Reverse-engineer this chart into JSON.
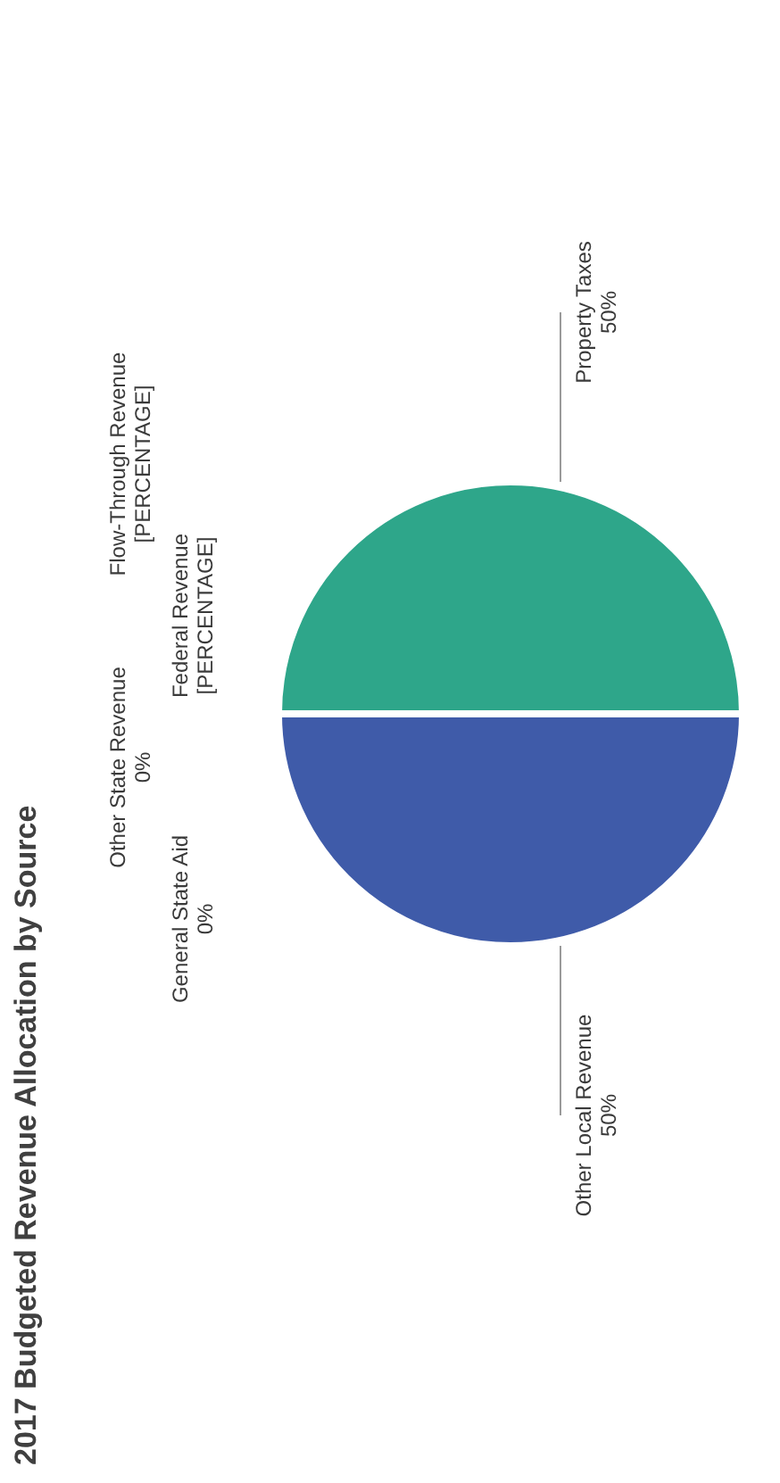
{
  "chart_data": {
    "type": "pie",
    "title": "2017 Budgeted Revenue Allocation by Source",
    "categories": [
      "Property Taxes",
      "Other Local Revenue",
      "General State Aid",
      "Other State Revenue",
      "Federal Revenue",
      "Flow-Through Revenue"
    ],
    "values": [
      50,
      50,
      0,
      0,
      0,
      0
    ],
    "value_labels": [
      "50%",
      "50%",
      "0%",
      "0%",
      "[PERCENTAGE]",
      "[PERCENTAGE]"
    ],
    "colors": [
      "#2ea68a",
      "#3f5ba9",
      "#e8a33d",
      "#9e9e9e",
      "#f2cf3a",
      "#5aa0d8"
    ],
    "legend": false
  }
}
